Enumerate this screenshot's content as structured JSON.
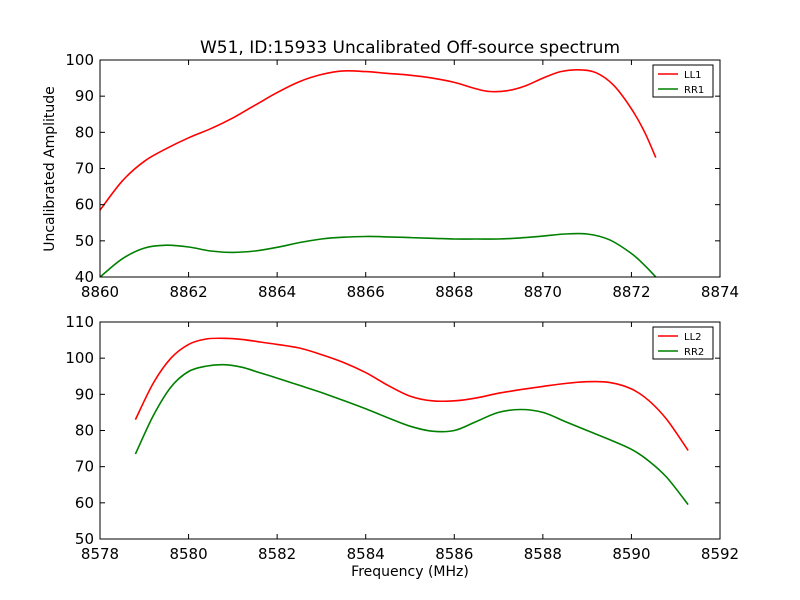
{
  "figure": {
    "title": "W51, ID:15933 Uncalibrated Off-source spectrum",
    "ylabel_top": "Uncalibrated Amplitude",
    "xlabel_bottom": "Frequency (MHz)"
  },
  "chart_data": [
    {
      "type": "line",
      "title": "W51, ID:15933 Uncalibrated Off-source spectrum",
      "xlabel": "",
      "ylabel": "Uncalibrated Amplitude",
      "xlim": [
        8860,
        8874
      ],
      "ylim": [
        40,
        100
      ],
      "xticks": [
        8860,
        8862,
        8864,
        8866,
        8868,
        8870,
        8872,
        8874
      ],
      "yticks": [
        40,
        50,
        60,
        70,
        80,
        90,
        100
      ],
      "legend": "top-right",
      "series": [
        {
          "name": "LL1",
          "color": "#ff0000",
          "x": [
            8860.0,
            8860.5,
            8861.0,
            8861.5,
            8862.0,
            8862.5,
            8863.0,
            8863.5,
            8864.0,
            8864.5,
            8865.0,
            8865.5,
            8866.0,
            8866.5,
            8867.0,
            8867.5,
            8868.0,
            8868.5,
            8868.8,
            8869.2,
            8869.6,
            8870.0,
            8870.4,
            8870.8,
            8871.2,
            8871.6,
            8872.0,
            8872.3,
            8872.55
          ],
          "values": [
            58.5,
            66.5,
            72.0,
            75.5,
            78.5,
            81.0,
            84.0,
            87.5,
            91.0,
            94.0,
            96.0,
            97.0,
            96.8,
            96.3,
            95.8,
            95.0,
            93.8,
            92.0,
            91.3,
            91.5,
            92.8,
            95.0,
            96.8,
            97.3,
            96.5,
            93.0,
            86.5,
            80.0,
            73.0
          ]
        },
        {
          "name": "RR1",
          "color": "#008000",
          "x": [
            8860.0,
            8860.5,
            8861.0,
            8861.5,
            8862.0,
            8862.5,
            8863.0,
            8863.5,
            8864.0,
            8864.5,
            8865.0,
            8865.5,
            8866.0,
            8866.5,
            8867.0,
            8867.5,
            8868.0,
            8868.5,
            8869.0,
            8869.5,
            8870.0,
            8870.5,
            8871.0,
            8871.5,
            8872.0,
            8872.3,
            8872.55
          ],
          "values": [
            40.0,
            45.0,
            48.0,
            48.8,
            48.3,
            47.2,
            46.8,
            47.2,
            48.2,
            49.5,
            50.5,
            51.0,
            51.2,
            51.1,
            50.9,
            50.7,
            50.5,
            50.5,
            50.5,
            50.8,
            51.3,
            51.9,
            51.9,
            50.3,
            46.5,
            43.2,
            40.0
          ]
        }
      ]
    },
    {
      "type": "line",
      "title": "",
      "xlabel": "Frequency (MHz)",
      "ylabel": "",
      "xlim": [
        8578,
        8592
      ],
      "ylim": [
        50,
        110
      ],
      "xticks": [
        8578,
        8580,
        8582,
        8584,
        8586,
        8588,
        8590,
        8592
      ],
      "yticks": [
        50,
        60,
        70,
        80,
        90,
        100,
        110
      ],
      "legend": "top-right",
      "series": [
        {
          "name": "LL2",
          "color": "#ff0000",
          "x": [
            8578.8,
            8579.2,
            8579.6,
            8580.0,
            8580.4,
            8580.8,
            8581.2,
            8581.6,
            8582.0,
            8582.5,
            8583.0,
            8583.5,
            8584.0,
            8584.5,
            8585.0,
            8585.5,
            8586.0,
            8586.5,
            8587.0,
            8587.5,
            8588.0,
            8588.5,
            8589.0,
            8589.5,
            8590.0,
            8590.4,
            8590.8,
            8591.28
          ],
          "values": [
            83.0,
            93.0,
            100.0,
            103.8,
            105.3,
            105.5,
            105.2,
            104.5,
            103.8,
            102.8,
            101.0,
            98.8,
            96.0,
            92.5,
            89.5,
            88.2,
            88.2,
            89.0,
            90.3,
            91.3,
            92.2,
            93.0,
            93.5,
            93.3,
            91.5,
            88.2,
            83.0,
            74.5
          ]
        },
        {
          "name": "RR2",
          "color": "#008000",
          "x": [
            8578.8,
            8579.2,
            8579.6,
            8580.0,
            8580.4,
            8580.8,
            8581.2,
            8581.6,
            8582.0,
            8582.5,
            8583.0,
            8583.5,
            8584.0,
            8584.5,
            8585.0,
            8585.5,
            8586.0,
            8586.5,
            8587.0,
            8587.5,
            8588.0,
            8588.5,
            8589.0,
            8589.5,
            8590.0,
            8590.4,
            8590.8,
            8591.28
          ],
          "values": [
            73.5,
            84.0,
            92.0,
            96.3,
            97.8,
            98.2,
            97.5,
            96.0,
            94.5,
            92.5,
            90.5,
            88.3,
            86.0,
            83.5,
            81.2,
            79.8,
            80.0,
            82.5,
            85.0,
            85.8,
            85.0,
            82.5,
            80.0,
            77.5,
            74.8,
            71.5,
            67.0,
            59.5
          ]
        }
      ]
    }
  ]
}
